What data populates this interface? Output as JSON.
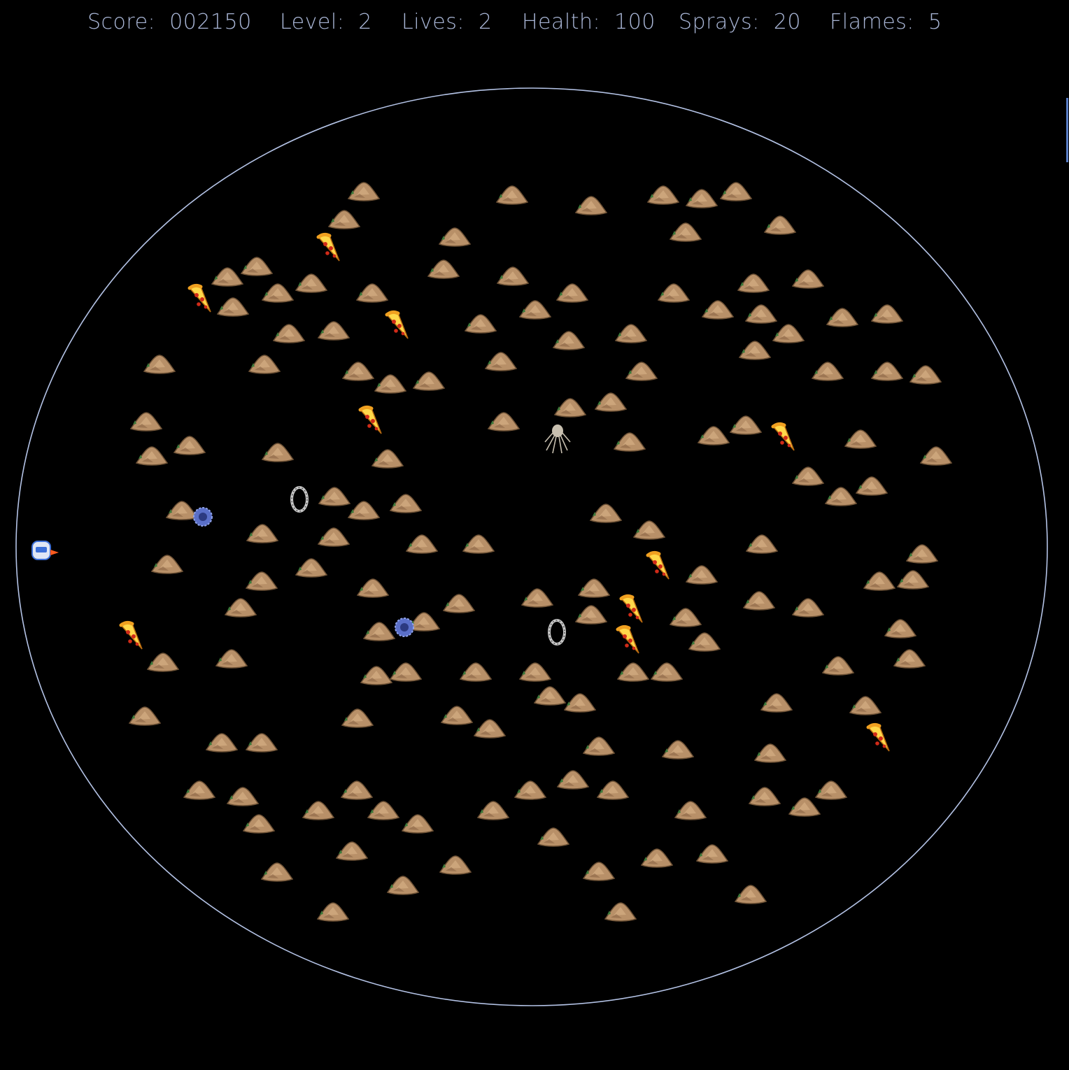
{
  "hud": {
    "score_label": "Score:",
    "score_value": "002150",
    "level_label": "Level:",
    "level_value": "2",
    "lives_label": "Lives:",
    "lives_value": "2",
    "health_label": "Health:",
    "health_value": "100",
    "sprays_label": "Sprays:",
    "sprays_value": "20",
    "flames_label": "Flames:",
    "flames_value": "5"
  },
  "colors": {
    "background": "#000000",
    "hud_text": "#a9b6d6",
    "arena_border": "#b4c3e6",
    "rock": "#b89068",
    "rock_shadow": "#6e5236",
    "sprout": "#3c7a3a",
    "pizza_crust": "#f0a020",
    "pizza_cheese": "#ffd84a",
    "pepperoni": "#d02a18",
    "gear": "#5a6fc8",
    "ring": "#c8c8c8",
    "spider": "#c8c0b0",
    "player_body": "#dfe6f5",
    "player_accent": "#3b6fd8",
    "player_flame": "#ff5a1e"
  },
  "sprites": {
    "arena": "arena-boundary",
    "rock": "dirt-mound-icon",
    "pizza": "pizza-slice-icon",
    "gear": "blue-gear-enemy-icon",
    "ring": "grey-ring-enemy-icon",
    "spider": "spider-enemy-icon",
    "player": "player-ship-icon"
  }
}
